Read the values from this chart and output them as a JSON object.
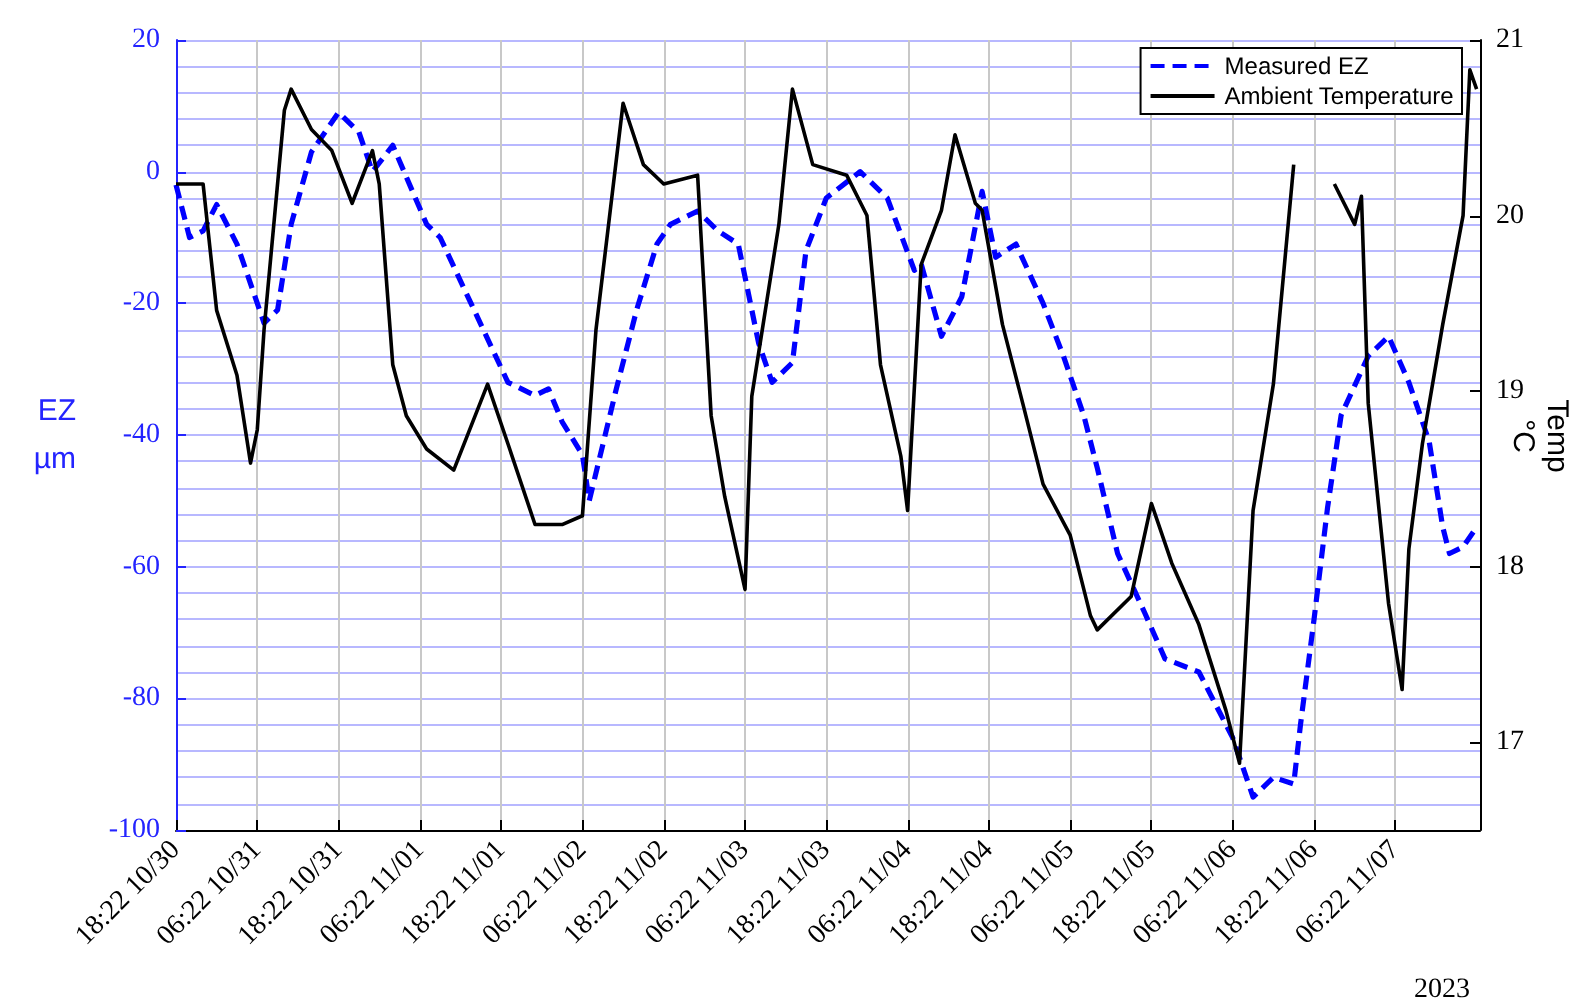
{
  "chart_data": {
    "type": "line",
    "ylabel": "EZ\nµm",
    "y2label": "Temp\n°C",
    "annotations": [
      "2023"
    ],
    "xlim": [
      "2023-10-30T18:22",
      "2023-11-07T18:52"
    ],
    "xticks": [
      {
        "value": "2023-10-30T18:22",
        "label": "18:22 10/30"
      },
      {
        "value": "2023-10-31T06:22",
        "label": "06:22 10/31"
      },
      {
        "value": "2023-10-31T18:22",
        "label": "18:22 10/31"
      },
      {
        "value": "2023-11-01T06:22",
        "label": "06:22 11/01"
      },
      {
        "value": "2023-11-01T18:22",
        "label": "18:22 11/01"
      },
      {
        "value": "2023-11-02T06:22",
        "label": "06:22 11/02"
      },
      {
        "value": "2023-11-02T18:22",
        "label": "18:22 11/02"
      },
      {
        "value": "2023-11-03T06:22",
        "label": "06:22 11/03"
      },
      {
        "value": "2023-11-03T18:22",
        "label": "18:22 11/03"
      },
      {
        "value": "2023-11-04T06:22",
        "label": "06:22 11/04"
      },
      {
        "value": "2023-11-04T18:22",
        "label": "18:22 11/04"
      },
      {
        "value": "2023-11-05T06:22",
        "label": "06:22 11/05"
      },
      {
        "value": "2023-11-05T18:22",
        "label": "18:22 11/05"
      },
      {
        "value": "2023-11-06T06:22",
        "label": "06:22 11/06"
      },
      {
        "value": "2023-11-06T18:22",
        "label": "18:22 11/06"
      },
      {
        "value": "2023-11-07T06:22",
        "label": "06:22 11/07"
      }
    ],
    "ylim": [
      -100,
      20
    ],
    "yticks": [
      -100,
      -80,
      -60,
      -40,
      -20,
      0,
      20
    ],
    "y2lim": [
      16.5,
      21
    ],
    "y2ticks": [
      17,
      18,
      19,
      20,
      21
    ],
    "grid": true,
    "legend": "top right",
    "marker": "none",
    "series": [
      {
        "name": "Measured EZ",
        "color": "#0000ff",
        "line_style": "dashed",
        "x": [
          "2023-10-30T18:22",
          "2023-10-30T20:22",
          "2023-10-30T22:22",
          "2023-10-31T00:22",
          "2023-10-31T03:22",
          "2023-10-31T07:22",
          "2023-10-31T09:22",
          "2023-10-31T11:22",
          "2023-10-31T14:22",
          "2023-10-31T18:22",
          "2023-10-31T21:22",
          "2023-10-31T23:22",
          "2023-11-01T02:22",
          "2023-11-01T07:22",
          "2023-11-01T09:22",
          "2023-11-01T14:22",
          "2023-11-01T19:22",
          "2023-11-01T23:22",
          "2023-11-02T01:22",
          "2023-11-02T03:22",
          "2023-11-02T06:22",
          "2023-11-02T07:22",
          "2023-11-02T11:22",
          "2023-11-02T14:22",
          "2023-11-02T17:22",
          "2023-11-02T19:22",
          "2023-11-02T23:22",
          "2023-11-03T02:22",
          "2023-11-03T05:22",
          "2023-11-03T08:22",
          "2023-11-03T10:22",
          "2023-11-03T13:22",
          "2023-11-03T15:22",
          "2023-11-03T18:22",
          "2023-11-03T23:22",
          "2023-11-04T03:22",
          "2023-11-04T07:22",
          "2023-11-04T08:22",
          "2023-11-04T11:22",
          "2023-11-04T14:22",
          "2023-11-04T17:22",
          "2023-11-04T19:22",
          "2023-11-04T22:22",
          "2023-11-05T02:22",
          "2023-11-05T05:22",
          "2023-11-05T08:22",
          "2023-11-05T10:22",
          "2023-11-05T13:22",
          "2023-11-05T17:22",
          "2023-11-05T20:22",
          "2023-11-06T01:22",
          "2023-11-06T06:22",
          "2023-11-06T09:22",
          "2023-11-06T12:22",
          "2023-11-06T15:22",
          "2023-11-06T16:22",
          "2023-11-06T18:22",
          "2023-11-06T20:22",
          "2023-11-06T22:22",
          "2023-11-07T02:22",
          "2023-11-07T05:22",
          "2023-11-07T08:22",
          "2023-11-07T11:22",
          "2023-11-07T13:22",
          "2023-11-07T14:22",
          "2023-11-07T16:22",
          "2023-11-07T18:22"
        ],
        "values": [
          -2,
          -10,
          -9,
          -5,
          -11,
          -23,
          -21,
          -8,
          3,
          9,
          6,
          0,
          4,
          -8,
          -10,
          -21,
          -32,
          -34,
          -33,
          -38,
          -43,
          -50,
          -33,
          -21,
          -11,
          -8,
          -6,
          -9,
          -11,
          -26,
          -32,
          -29,
          -12,
          -4,
          0,
          -4,
          -15,
          -14,
          -25,
          -19,
          -3,
          -13,
          -11,
          -20,
          -28,
          -37,
          -45,
          -58,
          -67,
          -74,
          -76,
          -86,
          -95,
          -92,
          -93,
          -84,
          -68,
          -51,
          -37,
          -28,
          -25,
          -32,
          -41,
          -54,
          -58,
          -57,
          -54
        ]
      },
      {
        "name": "Ambient Temperature",
        "color": "#000000",
        "line_style": "solid",
        "axis": "y2",
        "x": [
          "2023-10-30T18:22",
          "2023-10-30T22:22",
          "2023-10-31T00:22",
          "2023-10-31T03:22",
          "2023-10-31T05:22",
          "2023-10-31T06:22",
          "2023-10-31T07:22",
          "2023-10-31T10:22",
          "2023-10-31T11:22",
          "2023-10-31T14:22",
          "2023-10-31T17:22",
          "2023-10-31T20:22",
          "2023-10-31T23:22",
          "2023-11-01T00:22",
          "2023-11-01T02:22",
          "2023-11-01T04:22",
          "2023-11-01T07:22",
          "2023-11-01T11:22",
          "2023-11-01T16:22",
          "2023-11-01T19:22",
          "2023-11-01T23:22",
          "2023-11-02T03:22",
          "2023-11-02T06:22",
          "2023-11-02T08:22",
          "2023-11-02T12:22",
          "2023-11-02T15:22",
          "2023-11-02T18:22",
          "2023-11-02T23:22",
          "2023-11-03T01:22",
          "2023-11-03T03:22",
          "2023-11-03T06:22",
          "2023-11-03T07:22",
          "2023-11-03T11:22",
          "2023-11-03T13:22",
          "2023-11-03T16:22",
          "2023-11-03T21:22",
          "2023-11-04T00:22",
          "2023-11-04T02:22",
          "2023-11-04T05:22",
          "2023-11-04T06:22",
          "2023-11-04T08:22",
          "2023-11-04T11:22",
          "2023-11-04T13:22",
          "2023-11-04T16:22",
          "2023-11-04T17:22",
          "2023-11-04T20:22",
          "2023-11-04T23:22",
          "2023-11-05T02:22",
          "2023-11-05T06:22",
          "2023-11-05T09:22",
          "2023-11-05T10:22",
          "2023-11-05T15:22",
          "2023-11-05T18:22",
          "2023-11-05T21:22",
          "2023-11-06T01:22",
          "2023-11-06T05:22",
          "2023-11-06T07:22",
          "2023-11-06T09:22",
          "2023-11-06T12:22",
          "2023-11-06T15:22",
          "2023-11-06T16:22",
          "2023-11-06T18:22",
          "2023-11-06T21:22",
          "2023-11-07T00:22",
          "2023-11-07T01:22",
          "2023-11-07T02:22",
          "2023-11-07T05:22",
          "2023-11-07T07:22",
          "2023-11-07T08:22",
          "2023-11-07T10:22",
          "2023-11-07T13:22",
          "2023-11-07T16:22",
          "2023-11-07T17:22",
          "2023-11-07T18:22"
        ],
        "values": [
          20.18,
          20.18,
          19.46,
          19.09,
          18.59,
          18.78,
          19.35,
          20.6,
          20.72,
          20.49,
          20.37,
          20.07,
          20.37,
          20.18,
          19.15,
          18.86,
          18.67,
          18.55,
          19.04,
          18.7,
          18.24,
          18.24,
          18.29,
          19.35,
          20.64,
          20.29,
          20.18,
          20.23,
          18.86,
          18.4,
          17.87,
          18.97,
          19.95,
          20.72,
          20.29,
          20.23,
          20.0,
          19.15,
          18.63,
          18.32,
          19.72,
          20.03,
          20.46,
          20.07,
          20.03,
          19.38,
          18.93,
          18.47,
          18.18,
          17.72,
          17.64,
          17.83,
          18.36,
          18.02,
          17.67,
          17.18,
          16.88,
          18.32,
          19.04,
          20.29,
          null,
          null,
          20.18,
          19.95,
          20.11,
          18.93,
          17.79,
          17.3,
          18.1,
          18.7,
          19.38,
          20.0,
          20.83,
          20.72
        ]
      }
    ]
  }
}
